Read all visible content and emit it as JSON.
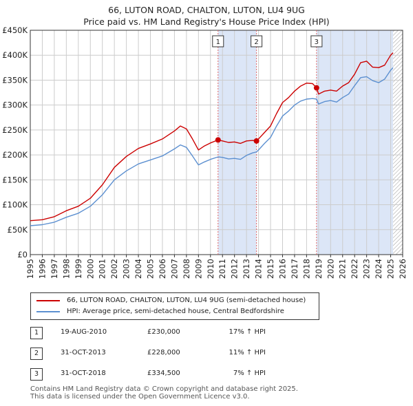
{
  "title": [
    "66, LUTON ROAD, CHALTON, LUTON, LU4 9UG",
    "Price paid vs. HM Land Registry's House Price Index (HPI)"
  ],
  "colors": {
    "property": "#cc0000",
    "hpi": "#5b8fd0",
    "shade": "#dce6f7",
    "grid": "#cccccc",
    "marker_line": "#e06666"
  },
  "chart_data": {
    "type": "line",
    "title": "Price paid vs. HM Land Registry's House Price Index (HPI)",
    "xlim": [
      1995,
      2026
    ],
    "ylim": [
      0,
      450000
    ],
    "yticks": [
      0,
      50000,
      100000,
      150000,
      200000,
      250000,
      300000,
      350000,
      400000,
      450000
    ],
    "ytick_labels": [
      "£0",
      "£50K",
      "£100K",
      "£150K",
      "£200K",
      "£250K",
      "£300K",
      "£350K",
      "£400K",
      "£450K"
    ],
    "xticks": [
      "1995",
      "1996",
      "1997",
      "1998",
      "1999",
      "2000",
      "2001",
      "2002",
      "2003",
      "2004",
      "2005",
      "2006",
      "2007",
      "2008",
      "2009",
      "2010",
      "2011",
      "2012",
      "2013",
      "2014",
      "2015",
      "2016",
      "2017",
      "2018",
      "2019",
      "2020",
      "2021",
      "2022",
      "2023",
      "2024",
      "2025",
      "2026"
    ],
    "series": [
      {
        "name": "66, LUTON ROAD, CHALTON, LUTON, LU4 9UG (semi-detached house)",
        "x": [
          1995,
          1996,
          1997,
          1998,
          1999,
          2000,
          2001,
          2002,
          2003,
          2004,
          2005,
          2006,
          2007,
          2007.5,
          2008,
          2008.5,
          2009,
          2009.5,
          2010,
          2010.63,
          2011,
          2011.5,
          2012,
          2012.5,
          2013,
          2013.5,
          2013.83,
          2014,
          2014.5,
          2015,
          2015.5,
          2016,
          2016.5,
          2017,
          2017.5,
          2018,
          2018.5,
          2018.83,
          2019,
          2019.5,
          2020,
          2020.5,
          2021,
          2021.5,
          2022,
          2022.5,
          2023,
          2023.5,
          2024,
          2024.5,
          2025,
          2025.2
        ],
        "values": [
          68000,
          70000,
          76000,
          88000,
          97000,
          113000,
          140000,
          175000,
          197000,
          213000,
          222000,
          232000,
          248000,
          258000,
          252000,
          232000,
          210000,
          218000,
          224000,
          230000,
          228000,
          225000,
          226000,
          223000,
          228000,
          229000,
          228000,
          232000,
          245000,
          258000,
          283000,
          305000,
          315000,
          328000,
          338000,
          344000,
          343000,
          334500,
          322000,
          328000,
          330000,
          328000,
          338000,
          345000,
          362000,
          385000,
          388000,
          376000,
          375000,
          380000,
          400000,
          405000
        ]
      },
      {
        "name": "HPI: Average price, semi-detached house, Central Bedfordshire",
        "x": [
          1995,
          1996,
          1997,
          1998,
          1999,
          2000,
          2001,
          2002,
          2003,
          2004,
          2005,
          2006,
          2007,
          2007.5,
          2008,
          2008.5,
          2009,
          2009.5,
          2010,
          2010.63,
          2011,
          2011.5,
          2012,
          2012.5,
          2013,
          2013.5,
          2013.83,
          2014,
          2014.5,
          2015,
          2015.5,
          2016,
          2016.5,
          2017,
          2017.5,
          2018,
          2018.5,
          2018.83,
          2019,
          2019.5,
          2020,
          2020.5,
          2021,
          2021.5,
          2022,
          2022.5,
          2023,
          2023.5,
          2024,
          2024.5,
          2025,
          2025.2
        ],
        "values": [
          58000,
          60000,
          65000,
          75000,
          83000,
          97000,
          120000,
          150000,
          168000,
          182000,
          190000,
          198000,
          212000,
          220000,
          215000,
          198000,
          180000,
          186000,
          191000,
          196000,
          195000,
          192000,
          193000,
          191000,
          199000,
          204000,
          206000,
          210000,
          223000,
          235000,
          258000,
          278000,
          288000,
          300000,
          308000,
          312000,
          313000,
          312000,
          302000,
          307000,
          309000,
          306000,
          315000,
          322000,
          339000,
          355000,
          357000,
          349000,
          345000,
          352000,
          370000,
          375000
        ]
      }
    ],
    "sales": [
      {
        "label": "1",
        "x": 2010.63,
        "value": 230000,
        "date": "19-AUG-2010",
        "price": "£230,000",
        "hpi": "17% ↑ HPI"
      },
      {
        "label": "2",
        "x": 2013.83,
        "value": 228000,
        "date": "31-OCT-2013",
        "price": "£228,000",
        "hpi": "11% ↑ HPI"
      },
      {
        "label": "3",
        "x": 2018.83,
        "value": 334500,
        "date": "31-OCT-2018",
        "price": "£334,500",
        "hpi": "7% ↑ HPI"
      }
    ],
    "shaded_ranges": [
      [
        2010.63,
        2013.83
      ],
      [
        2018.83,
        2025.2
      ]
    ],
    "hatch_from": 2025.2,
    "legend": [
      "66, LUTON ROAD, CHALTON, LUTON, LU4 9UG (semi-detached house)",
      "HPI: Average price, semi-detached house, Central Bedfordshire"
    ]
  },
  "footer": [
    "Contains HM Land Registry data © Crown copyright and database right 2025.",
    "This data is licensed under the Open Government Licence v3.0."
  ]
}
